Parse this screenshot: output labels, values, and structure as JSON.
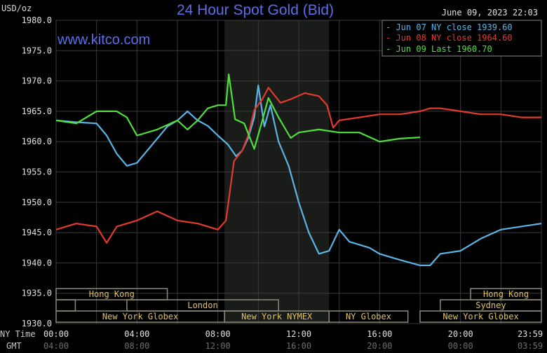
{
  "chart_data": {
    "type": "line",
    "title": "24 Hour Spot Gold (Bid)",
    "watermark": "www.kitco.com",
    "timestamp": "June 09, 2023 22:03",
    "ylabel": "USD/oz",
    "ylim": [
      1930,
      1980
    ],
    "yticks": [
      "1930.0",
      "1935.0",
      "1940.0",
      "1945.0",
      "1950.0",
      "1955.0",
      "1960.0",
      "1965.0",
      "1970.0",
      "1975.0",
      "1980.0"
    ],
    "xlim_hours": [
      0,
      24
    ],
    "x_row_labels": {
      "ny": "NY Time",
      "gmt": "GMT"
    },
    "xticks_ny": [
      "00:00",
      "04:00",
      "08:00",
      "12:00",
      "16:00",
      "20:00",
      "23:59"
    ],
    "xticks_gmt": [
      "04:00",
      "08:00",
      "12:00",
      "16:00",
      "20:00",
      "00:00",
      "03:59"
    ],
    "grid": true,
    "shaded_hours": [
      8.33,
      13.5
    ],
    "legend_position": "top-right",
    "legend": [
      {
        "label": "- Jun 07 NY close 1939.60",
        "color": "#5ab4e6"
      },
      {
        "label": "- Jun 08 NY close 1964.60",
        "color": "#e23b2e"
      },
      {
        "label": "- Jun 09 Last 1960.70",
        "color": "#4fe03c"
      }
    ],
    "series": [
      {
        "name": "Jun 07 NY close 1939.60",
        "color": "#5ab4e6",
        "x": [
          0,
          1,
          2,
          2.5,
          3,
          3.5,
          4,
          4.5,
          5,
          5.5,
          6,
          6.5,
          7,
          7.5,
          8,
          8.5,
          8.9,
          9.2,
          9.5,
          9.8,
          10,
          10.3,
          10.6,
          11,
          11.5,
          12,
          12.5,
          13,
          13.5,
          14,
          14.5,
          15,
          15.5,
          16,
          17,
          18,
          18.5,
          19,
          20,
          21,
          22,
          23,
          24
        ],
        "y": [
          1963.5,
          1963.2,
          1963,
          1961,
          1958,
          1956,
          1956.5,
          1958.5,
          1960.5,
          1962.5,
          1963.5,
          1965,
          1963.5,
          1962.6,
          1961,
          1959.5,
          1957.6,
          1958.5,
          1960.6,
          1964,
          1969.3,
          1962.5,
          1966,
          1960,
          1956,
          1950,
          1945,
          1941.5,
          1942,
          1945.5,
          1943.5,
          1943,
          1942.5,
          1941.5,
          1940.5,
          1939.6,
          1939.6,
          1941.5,
          1942,
          1944,
          1945.5,
          1946,
          1946.5
        ]
      },
      {
        "name": "Jun 08 NY close 1964.60",
        "color": "#e23b2e",
        "x": [
          0,
          1,
          2,
          2.5,
          3,
          4,
          5,
          6,
          7,
          8,
          8.4,
          8.8,
          9.2,
          9.5,
          9.8,
          10.2,
          10.5,
          11.1,
          11.6,
          12.3,
          13,
          13.4,
          13.7,
          14,
          15,
          16,
          17,
          18,
          18.5,
          19,
          20,
          21,
          22,
          23,
          24
        ],
        "y": [
          1945.5,
          1946.5,
          1946,
          1943.3,
          1946,
          1947,
          1948.5,
          1947,
          1946.5,
          1945.5,
          1947,
          1956.8,
          1958.5,
          1961,
          1965.2,
          1967,
          1968.9,
          1966.4,
          1967,
          1968,
          1967.5,
          1966,
          1962.3,
          1963.5,
          1964,
          1964.5,
          1964.5,
          1965,
          1965.5,
          1965.5,
          1965,
          1964.5,
          1964.5,
          1964,
          1964
        ]
      },
      {
        "name": "Jun 09 Last 1960.70",
        "color": "#4fe03c",
        "x": [
          0,
          1,
          2,
          3,
          3.5,
          4,
          5,
          6,
          6.5,
          7,
          7.5,
          8,
          8.4,
          8.54,
          8.85,
          9.3,
          9.8,
          10.2,
          10.5,
          11,
          11.6,
          12,
          13,
          14,
          15,
          16,
          17,
          18
        ],
        "y": [
          1963.5,
          1963,
          1965,
          1965,
          1964,
          1961,
          1962,
          1963.5,
          1962,
          1963.5,
          1965.5,
          1966,
          1966,
          1971.1,
          1963.7,
          1963,
          1958.8,
          1963.5,
          1967.2,
          1964,
          1960.6,
          1961.5,
          1962,
          1961.5,
          1961.5,
          1960,
          1960.5,
          1960.7
        ]
      }
    ],
    "sessions": [
      {
        "label": "Hong Kong",
        "row": 0,
        "start": 0,
        "end": 5.5
      },
      {
        "label": "Hong Kong",
        "row": 0,
        "start": 20.5,
        "end": 24
      },
      {
        "label": "",
        "row": 1,
        "start": 0,
        "end": 0.95
      },
      {
        "label": "London",
        "row": 1,
        "start": 3.5,
        "end": 11
      },
      {
        "label": "Sydney",
        "row": 1,
        "start": 19,
        "end": 24
      },
      {
        "label": "New York Globex",
        "row": 2,
        "start": 0,
        "end": 8.33
      },
      {
        "label": "New York NYMEX",
        "row": 2,
        "start": 8.33,
        "end": 13.5
      },
      {
        "label": "NY Globex",
        "row": 2,
        "start": 13.5,
        "end": 17.4
      },
      {
        "label": "New York Globex",
        "row": 2,
        "start": 18,
        "end": 24
      }
    ]
  }
}
